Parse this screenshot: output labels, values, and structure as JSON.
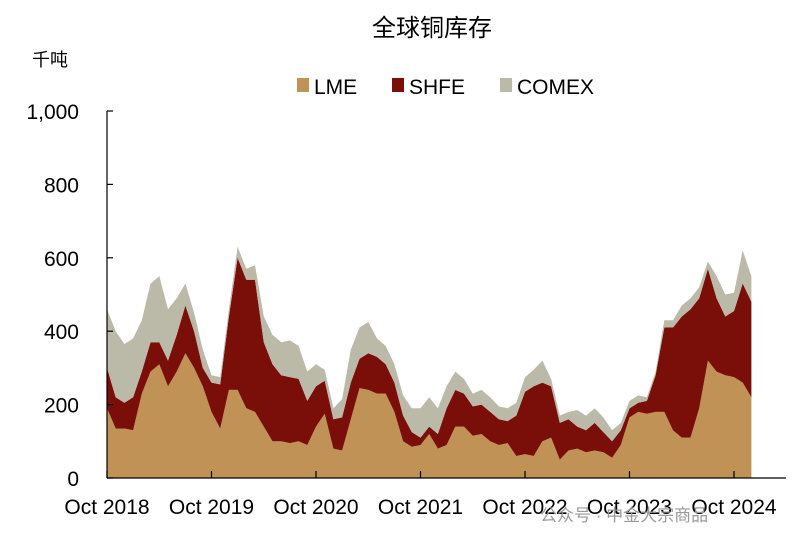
{
  "chart_data": {
    "type": "area",
    "title": "全球铜库存",
    "ylabel": "千吨",
    "xlabel": "",
    "ylim": [
      0,
      1000
    ],
    "y_ticks": [
      "0",
      "200",
      "400",
      "600",
      "800",
      "1,000"
    ],
    "y_tick_values": [
      0,
      200,
      400,
      600,
      800,
      1000
    ],
    "x_ticks": [
      "Oct 2018",
      "Oct 2019",
      "Oct 2020",
      "Oct 2021",
      "Oct 2022",
      "Oct 2023",
      "Oct 2024"
    ],
    "x_tick_values": [
      "2018-10",
      "2019-10",
      "2020-10",
      "2021-10",
      "2022-10",
      "2023-10",
      "2024-10"
    ],
    "stacked": true,
    "legend_position": "top-center",
    "grid": false,
    "x": [
      "2018-10",
      "2018-11",
      "2018-12",
      "2019-01",
      "2019-02",
      "2019-03",
      "2019-04",
      "2019-05",
      "2019-06",
      "2019-07",
      "2019-08",
      "2019-09",
      "2019-10",
      "2019-11",
      "2019-12",
      "2020-01",
      "2020-02",
      "2020-03",
      "2020-04",
      "2020-05",
      "2020-06",
      "2020-07",
      "2020-08",
      "2020-09",
      "2020-10",
      "2020-11",
      "2020-12",
      "2021-01",
      "2021-02",
      "2021-03",
      "2021-04",
      "2021-05",
      "2021-06",
      "2021-07",
      "2021-08",
      "2021-09",
      "2021-10",
      "2021-11",
      "2021-12",
      "2022-01",
      "2022-02",
      "2022-03",
      "2022-04",
      "2022-05",
      "2022-06",
      "2022-07",
      "2022-08",
      "2022-09",
      "2022-10",
      "2022-11",
      "2022-12",
      "2023-01",
      "2023-02",
      "2023-03",
      "2023-04",
      "2023-05",
      "2023-06",
      "2023-07",
      "2023-08",
      "2023-09",
      "2023-10",
      "2023-11",
      "2023-12",
      "2024-01",
      "2024-02",
      "2024-03",
      "2024-04",
      "2024-05",
      "2024-06",
      "2024-07",
      "2024-08",
      "2024-09",
      "2024-10",
      "2024-11",
      "2024-12"
    ],
    "series": [
      {
        "name": "LME",
        "color": "#c09256",
        "values": [
          190,
          135,
          135,
          130,
          230,
          290,
          310,
          250,
          290,
          340,
          300,
          250,
          180,
          135,
          240,
          240,
          190,
          180,
          140,
          100,
          100,
          95,
          100,
          90,
          140,
          175,
          80,
          75,
          160,
          245,
          240,
          230,
          230,
          180,
          100,
          85,
          90,
          120,
          80,
          90,
          140,
          140,
          115,
          120,
          100,
          90,
          95,
          60,
          65,
          60,
          100,
          110,
          50,
          75,
          80,
          70,
          75,
          70,
          55,
          90,
          165,
          180,
          175,
          180,
          180,
          130,
          110,
          110,
          190,
          320,
          290,
          280,
          275,
          260,
          220
        ]
      },
      {
        "name": "SHFE",
        "color": "#7a0f0a",
        "values": [
          110,
          85,
          70,
          90,
          60,
          80,
          60,
          70,
          100,
          130,
          100,
          50,
          80,
          120,
          200,
          360,
          350,
          360,
          230,
          210,
          180,
          180,
          170,
          120,
          110,
          90,
          80,
          90,
          100,
          80,
          100,
          100,
          80,
          80,
          70,
          40,
          20,
          20,
          40,
          100,
          100,
          90,
          80,
          80,
          80,
          70,
          60,
          110,
          170,
          190,
          160,
          140,
          100,
          85,
          60,
          60,
          75,
          55,
          45,
          40,
          25,
          25,
          35,
          100,
          230,
          280,
          330,
          350,
          300,
          250,
          200,
          160,
          180,
          270,
          260
        ]
      },
      {
        "name": "COMEX",
        "color": "#bbbaa8",
        "values": [
          160,
          180,
          160,
          160,
          140,
          160,
          180,
          140,
          100,
          60,
          50,
          50,
          20,
          20,
          20,
          30,
          30,
          40,
          70,
          80,
          90,
          100,
          90,
          80,
          60,
          30,
          30,
          50,
          90,
          85,
          85,
          50,
          50,
          50,
          55,
          65,
          80,
          80,
          70,
          60,
          50,
          40,
          35,
          40,
          40,
          35,
          35,
          35,
          40,
          45,
          60,
          20,
          20,
          20,
          45,
          40,
          40,
          40,
          30,
          20,
          20,
          20,
          10,
          10,
          20,
          20,
          30,
          30,
          30,
          20,
          60,
          60,
          50,
          90,
          70
        ]
      }
    ]
  },
  "watermark": "公众号 · 中金大宗商品"
}
